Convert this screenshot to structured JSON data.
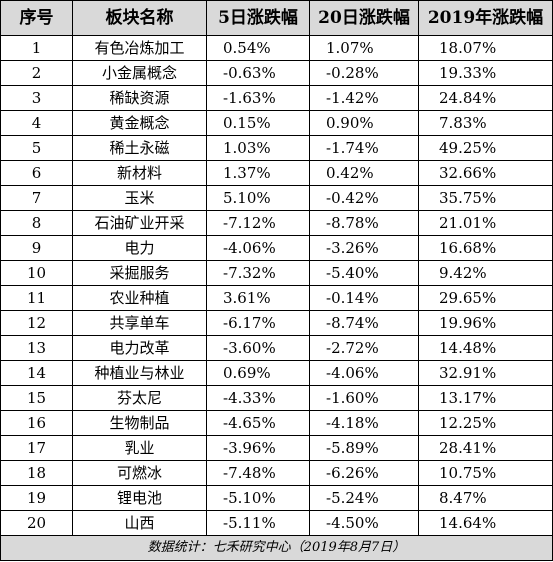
{
  "table": {
    "headers": [
      "序号",
      "板块名称",
      "5日涨跌幅",
      "20日涨跌幅",
      "2019年涨跌幅"
    ],
    "rows": [
      [
        "1",
        "有色冶炼加工",
        "0.54%",
        "1.07%",
        "18.07%"
      ],
      [
        "2",
        "小金属概念",
        "-0.63%",
        "-0.28%",
        "19.33%"
      ],
      [
        "3",
        "稀缺资源",
        "-1.63%",
        "-1.42%",
        "24.84%"
      ],
      [
        "4",
        "黄金概念",
        "0.15%",
        "0.90%",
        "7.83%"
      ],
      [
        "5",
        "稀土永磁",
        "1.03%",
        "-1.74%",
        "49.25%"
      ],
      [
        "6",
        "新材料",
        "1.37%",
        "0.42%",
        "32.66%"
      ],
      [
        "7",
        "玉米",
        "5.10%",
        "-0.42%",
        "35.75%"
      ],
      [
        "8",
        "石油矿业开采",
        "-7.12%",
        "-8.78%",
        "21.01%"
      ],
      [
        "9",
        "电力",
        "-4.06%",
        "-3.26%",
        "16.68%"
      ],
      [
        "10",
        "采掘服务",
        "-7.32%",
        "-5.40%",
        "9.42%"
      ],
      [
        "11",
        "农业种植",
        "3.61%",
        "-0.14%",
        "29.65%"
      ],
      [
        "12",
        "共享单车",
        "-6.17%",
        "-8.74%",
        "19.96%"
      ],
      [
        "13",
        "电力改革",
        "-3.60%",
        "-2.72%",
        "14.48%"
      ],
      [
        "14",
        "种植业与林业",
        "0.69%",
        "-4.06%",
        "32.91%"
      ],
      [
        "15",
        "芬太尼",
        "-4.33%",
        "-1.60%",
        "13.17%"
      ],
      [
        "16",
        "生物制品",
        "-4.65%",
        "-4.18%",
        "12.25%"
      ],
      [
        "17",
        "乳业",
        "-3.96%",
        "-5.89%",
        "28.41%"
      ],
      [
        "18",
        "可燃冰",
        "-7.48%",
        "-6.26%",
        "10.75%"
      ],
      [
        "19",
        "锂电池",
        "-5.10%",
        "-5.24%",
        "8.47%"
      ],
      [
        "20",
        "山西",
        "-5.11%",
        "-4.50%",
        "14.64%"
      ]
    ],
    "footer": "数据统计：七禾研究中心（2019年8月7日）"
  }
}
